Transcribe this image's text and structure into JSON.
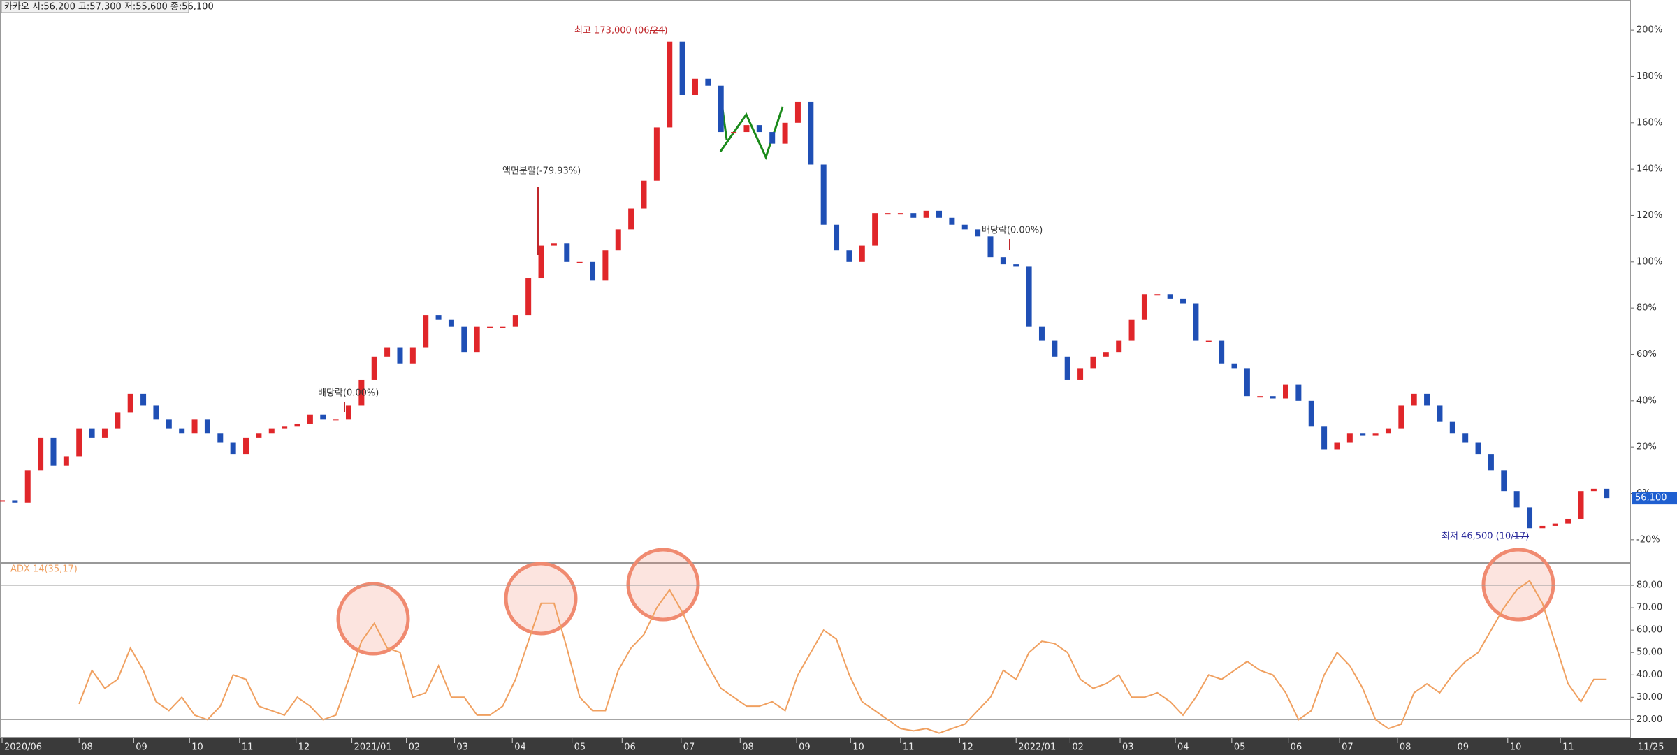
{
  "header": "카카오 시:56,200 고:57,300 저:55,600 종:56,100",
  "chart_data": [
    {
      "type": "candlestick",
      "values": [
        -3,
        -4,
        10,
        24,
        12,
        16,
        28,
        24,
        28,
        35,
        43,
        38,
        32,
        28,
        26,
        32,
        26,
        22,
        17,
        24,
        26,
        28,
        29,
        30,
        34,
        32,
        32,
        38,
        49,
        59,
        63,
        56,
        63,
        77,
        75,
        72,
        61,
        72,
        72,
        72,
        77,
        93,
        107,
        108,
        100,
        100,
        92,
        105,
        114,
        123,
        135,
        158,
        195,
        172,
        179,
        176,
        156,
        156,
        159,
        156,
        151,
        160,
        169,
        142,
        116,
        105,
        100,
        107,
        121,
        121,
        121,
        119,
        122,
        119,
        116,
        114,
        111,
        102,
        99,
        98,
        72,
        66,
        59,
        49,
        54,
        59,
        61,
        66,
        75,
        86,
        86,
        84,
        82,
        66,
        66,
        56,
        54,
        42,
        42,
        41,
        47,
        40,
        29,
        19,
        22,
        26,
        25,
        26,
        28,
        38,
        43,
        38,
        31,
        26,
        22,
        17,
        10,
        1,
        -6,
        -15,
        -14,
        -13,
        -11,
        1,
        2,
        -2
      ],
      "up_color": "#e0262a",
      "down_color": "#1f4fb5",
      "ylim": [
        -30,
        213
      ],
      "yticks": [
        {
          "value": 200,
          "label": "200%"
        },
        {
          "value": 180,
          "label": "180%"
        },
        {
          "value": 160,
          "label": "160%"
        },
        {
          "value": 140,
          "label": "140%"
        },
        {
          "value": 120,
          "label": "120%"
        },
        {
          "value": 100,
          "label": "100%"
        },
        {
          "value": 80,
          "label": "80%"
        },
        {
          "value": 60,
          "label": "60%"
        },
        {
          "value": 40,
          "label": "40%"
        },
        {
          "value": 20,
          "label": "20%"
        },
        {
          "value": 0,
          "label": "0%"
        },
        {
          "value": -20,
          "label": "-20%"
        }
      ],
      "current_label": "56,100",
      "annotations": [
        "최고 173,000 (06/24)",
        "액면분할(-79.93%)",
        "배당락(0.00%)",
        "배당락(0.00%)",
        "최저 46,500 (10/17)"
      ],
      "xticks": [
        {
          "value": 0,
          "label": "2020/06"
        },
        {
          "value": 6,
          "label": "08"
        },
        {
          "value": 10.25,
          "label": "09"
        },
        {
          "value": 14.6,
          "label": "10"
        },
        {
          "value": 18.5,
          "label": "11"
        },
        {
          "value": 22.9,
          "label": "12"
        },
        {
          "value": 27.25,
          "label": "2021/01"
        },
        {
          "value": 31.5,
          "label": "02"
        },
        {
          "value": 35.25,
          "label": "03"
        },
        {
          "value": 39.75,
          "label": "04"
        },
        {
          "value": 44.4,
          "label": "05"
        },
        {
          "value": 48.3,
          "label": "06"
        },
        {
          "value": 52.9,
          "label": "07"
        },
        {
          "value": 57.5,
          "label": "08"
        },
        {
          "value": 61.9,
          "label": "09"
        },
        {
          "value": 66.1,
          "label": "10"
        },
        {
          "value": 70,
          "label": "11"
        },
        {
          "value": 74.6,
          "label": "12"
        },
        {
          "value": 79,
          "label": "2022/01"
        },
        {
          "value": 83.2,
          "label": "02"
        },
        {
          "value": 87.1,
          "label": "03"
        },
        {
          "value": 91.4,
          "label": "04"
        },
        {
          "value": 95.8,
          "label": "05"
        },
        {
          "value": 100.2,
          "label": "06"
        },
        {
          "value": 104.2,
          "label": "07"
        },
        {
          "value": 108.7,
          "label": "08"
        },
        {
          "value": 113.2,
          "label": "09"
        },
        {
          "value": 117.3,
          "label": "10"
        },
        {
          "value": 121.4,
          "label": "11"
        }
      ],
      "last_date": "11/25"
    },
    {
      "type": "line",
      "title": "ADX 14(35,17)",
      "color": "#f0a060",
      "values": [
        null,
        null,
        null,
        null,
        null,
        null,
        27,
        42,
        34,
        38,
        52,
        42,
        28,
        24,
        30,
        22,
        20,
        26,
        40,
        38,
        26,
        24,
        22,
        30,
        26,
        20,
        22,
        38,
        55,
        63,
        52,
        50,
        30,
        32,
        44,
        30,
        30,
        22,
        22,
        26,
        38,
        55,
        72,
        72,
        52,
        30,
        24,
        24,
        42,
        52,
        58,
        70,
        78,
        68,
        55,
        44,
        34,
        30,
        26,
        26,
        28,
        24,
        40,
        50,
        60,
        56,
        40,
        28,
        24,
        20,
        16,
        15,
        16,
        14,
        16,
        18,
        24,
        30,
        42,
        38,
        50,
        55,
        54,
        50,
        38,
        34,
        36,
        40,
        30,
        30,
        32,
        28,
        22,
        30,
        40,
        38,
        42,
        46,
        42,
        40,
        32,
        20,
        24,
        40,
        50,
        44,
        34,
        20,
        16,
        18,
        32,
        36,
        32,
        40,
        46,
        50,
        60,
        70,
        78,
        82,
        72,
        54,
        36,
        28,
        38,
        38
      ],
      "ylim": [
        12,
        90
      ],
      "yticks": [
        {
          "value": 80,
          "label": "80.00"
        },
        {
          "value": 70,
          "label": "70.00"
        },
        {
          "value": 60,
          "label": "60.00"
        },
        {
          "value": 50,
          "label": "50.00"
        },
        {
          "value": 40,
          "label": "40.00"
        },
        {
          "value": 30,
          "label": "30.00"
        },
        {
          "value": 20,
          "label": "20.00"
        }
      ],
      "reference_lines": [
        80,
        20
      ]
    }
  ]
}
